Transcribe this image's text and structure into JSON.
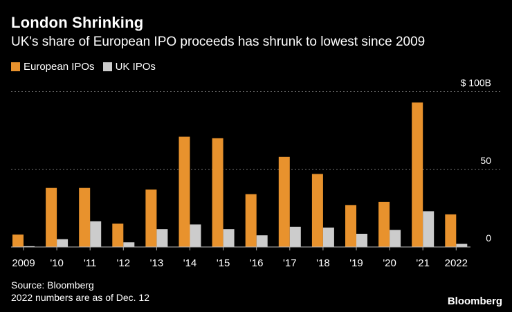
{
  "title": "London Shrinking",
  "subtitle": "UK's share of European IPO proceeds has shrunk to lowest since 2009",
  "legend": [
    {
      "label": "European IPOs",
      "color": "#e8922d"
    },
    {
      "label": "UK IPOs",
      "color": "#cccccc"
    }
  ],
  "chart_data": {
    "type": "bar",
    "title": "London Shrinking",
    "subtitle": "UK's share of European IPO proceeds has shrunk to lowest since 2009",
    "categories": [
      "2009",
      "'10",
      "'11",
      "'12",
      "'13",
      "'14",
      "'15",
      "'16",
      "'17",
      "'18",
      "'19",
      "'20",
      "'21",
      "2022"
    ],
    "series": [
      {
        "name": "European IPOs",
        "color": "#e8922d",
        "values": [
          8,
          38,
          38,
          15,
          37,
          71,
          70,
          34,
          58,
          47,
          27,
          29,
          93,
          21
        ]
      },
      {
        "name": "UK IPOs",
        "color": "#cccccc",
        "values": [
          0.5,
          5,
          16.5,
          3,
          11.5,
          14.5,
          11.5,
          7.5,
          13,
          12.5,
          8.5,
          11,
          23,
          2
        ]
      }
    ],
    "y_ticks": [
      {
        "value": 0,
        "label": "0"
      },
      {
        "value": 50,
        "label": "50"
      },
      {
        "value": 100,
        "label": "$ 100B"
      }
    ],
    "ylim": [
      0,
      100
    ],
    "xlabel": "",
    "ylabel": "",
    "grid": true,
    "legend_position": "top-left"
  },
  "footer": {
    "source": "Source: Bloomberg",
    "note": "2022 numbers are as of Dec. 12"
  },
  "brand": "Bloomberg"
}
